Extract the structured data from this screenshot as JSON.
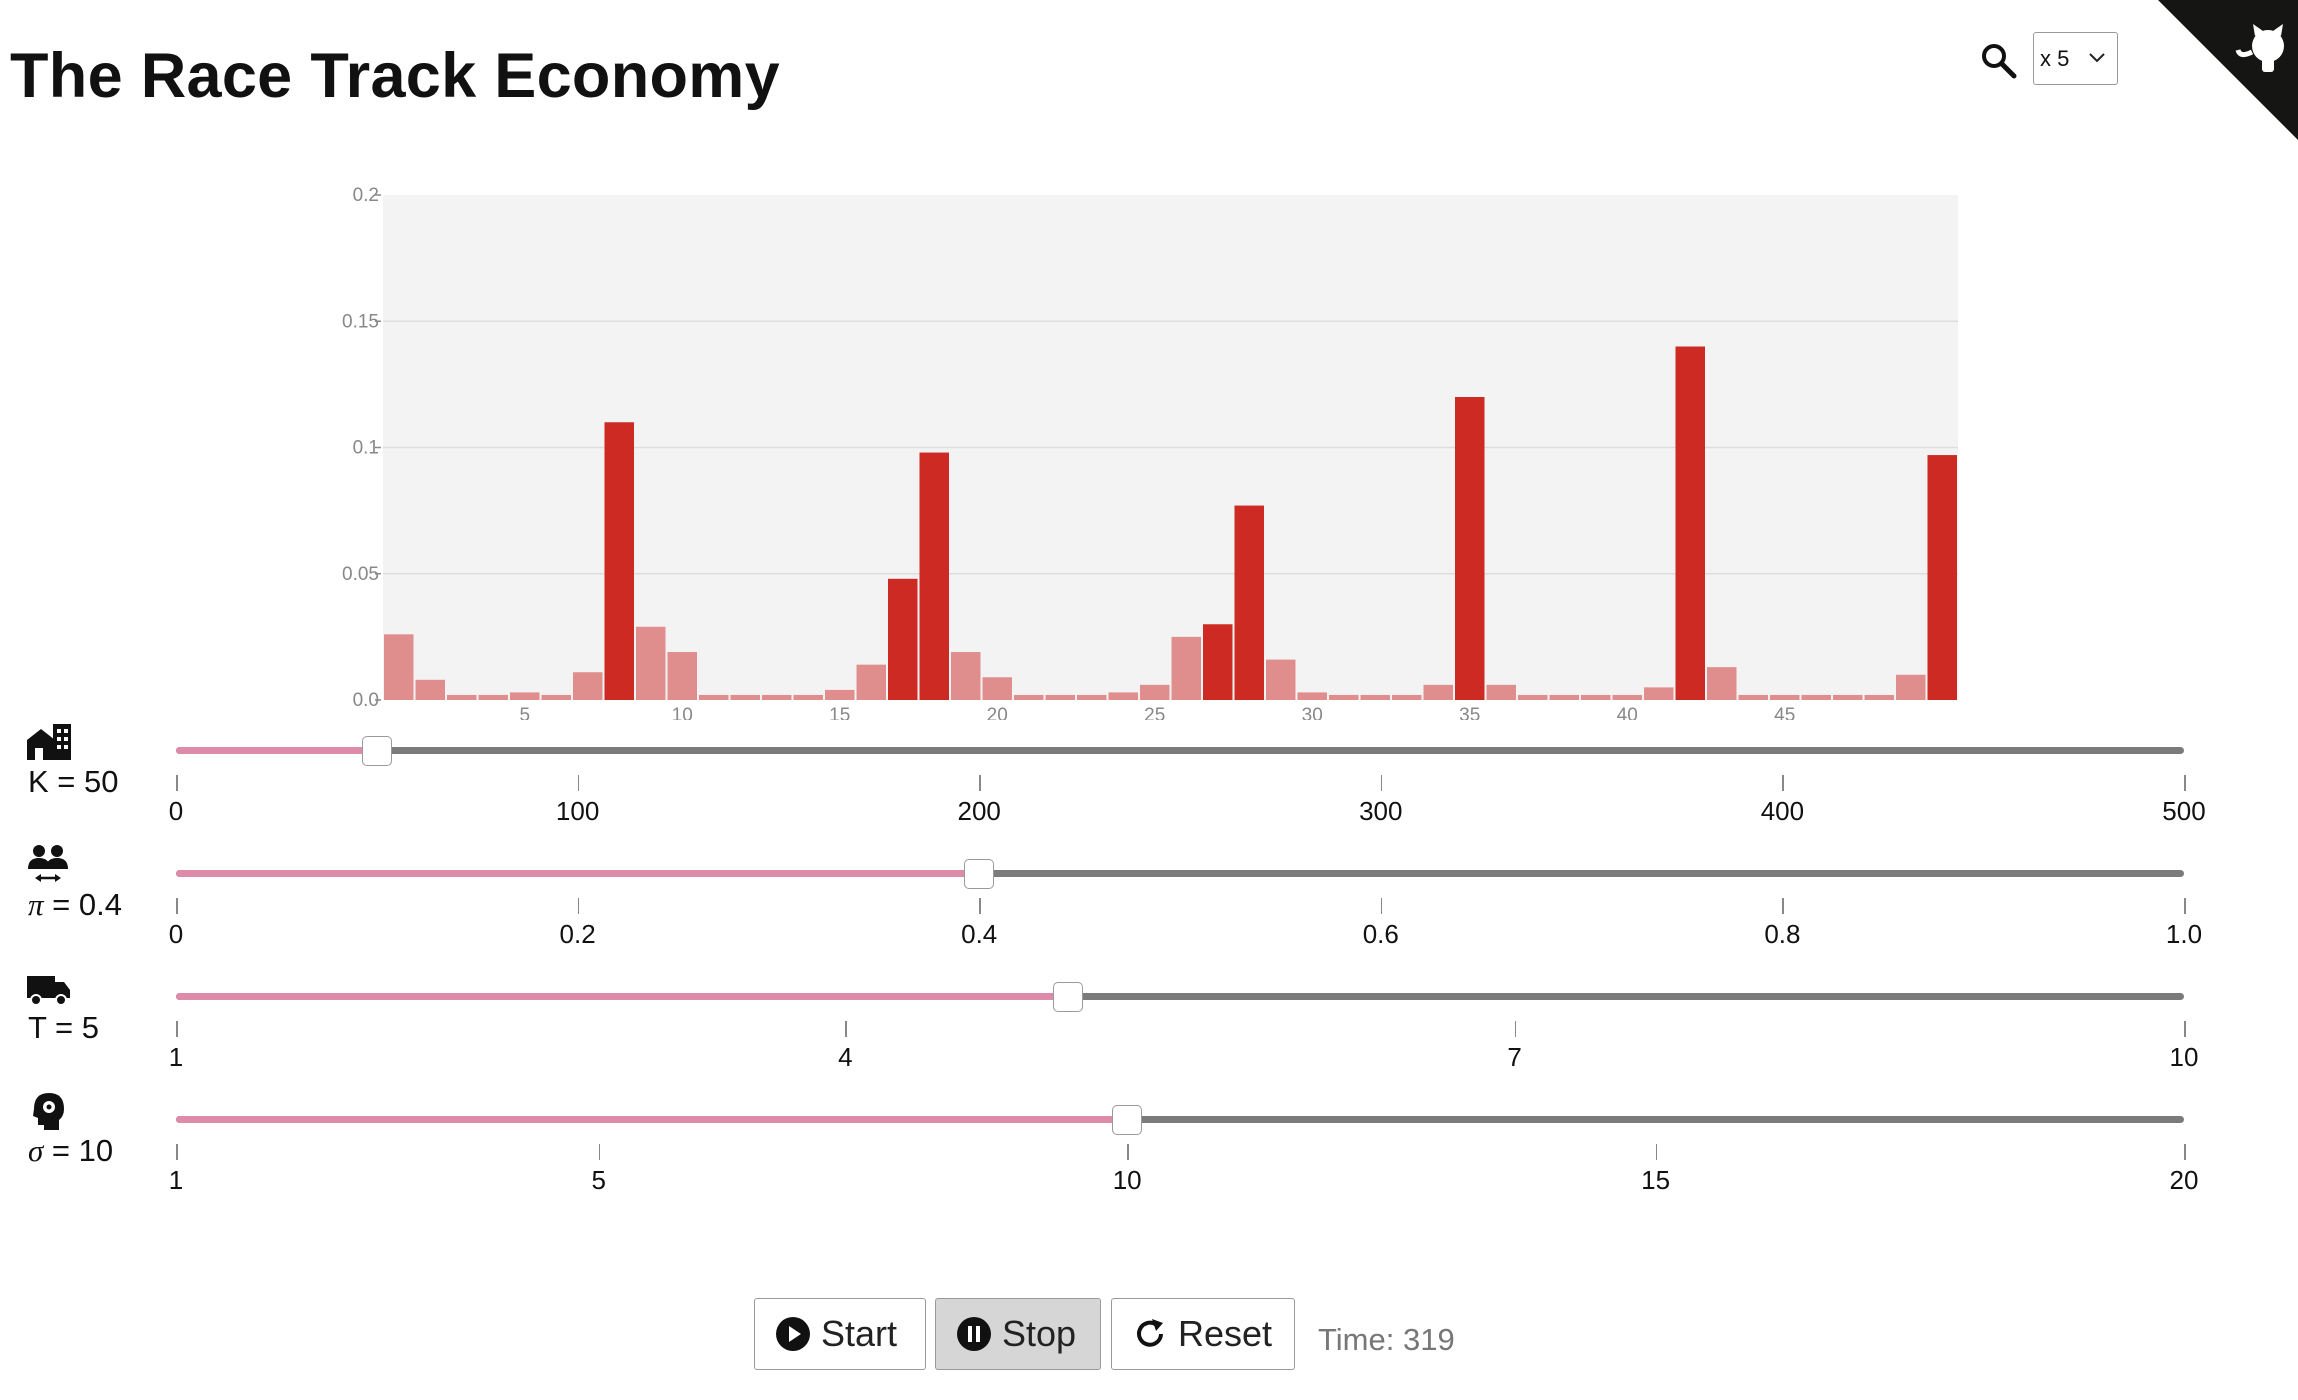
{
  "app": {
    "title": "The Race Track Economy",
    "speed": {
      "selected": "x 5"
    },
    "icons": {
      "search": "search-icon",
      "speed_menu": "chevron-down-icon",
      "corner": "github-octocat-icon"
    }
  },
  "chart_data": {
    "type": "bar",
    "x": [
      1,
      2,
      3,
      4,
      5,
      6,
      7,
      8,
      9,
      10,
      11,
      12,
      13,
      14,
      15,
      16,
      17,
      18,
      19,
      20,
      21,
      22,
      23,
      24,
      25,
      26,
      27,
      28,
      29,
      30,
      31,
      32,
      33,
      34,
      35,
      36,
      37,
      38,
      39,
      40,
      41,
      42,
      43,
      44,
      45,
      46,
      47,
      48,
      49,
      50
    ],
    "values": [
      0.026,
      0.008,
      0.002,
      0.002,
      0.003,
      0.002,
      0.011,
      0.11,
      0.029,
      0.019,
      0.002,
      0.002,
      0.002,
      0.002,
      0.004,
      0.014,
      0.048,
      0.098,
      0.019,
      0.009,
      0.002,
      0.002,
      0.002,
      0.003,
      0.006,
      0.025,
      0.03,
      0.077,
      0.016,
      0.003,
      0.002,
      0.002,
      0.002,
      0.006,
      0.12,
      0.006,
      0.002,
      0.002,
      0.002,
      0.002,
      0.005,
      0.14,
      0.013,
      0.002,
      0.002,
      0.002,
      0.002,
      0.002,
      0.01,
      0.097
    ],
    "highlight": [
      false,
      false,
      false,
      false,
      false,
      false,
      false,
      true,
      false,
      false,
      false,
      false,
      false,
      false,
      false,
      false,
      true,
      true,
      false,
      false,
      false,
      false,
      false,
      false,
      false,
      false,
      true,
      true,
      false,
      false,
      false,
      false,
      false,
      false,
      true,
      false,
      false,
      false,
      false,
      false,
      false,
      true,
      false,
      false,
      false,
      false,
      false,
      false,
      false,
      true
    ],
    "xticks": [
      "5",
      "10",
      "15",
      "20",
      "25",
      "30",
      "35",
      "40",
      "45"
    ],
    "xtick_values": [
      5,
      10,
      15,
      20,
      25,
      30,
      35,
      40,
      45
    ],
    "yticks": [
      "0.0",
      "0.05",
      "0.1",
      "0.15",
      "0.2"
    ],
    "ytick_values": [
      0,
      0.05,
      0.1,
      0.15,
      0.2
    ],
    "ylim": [
      0,
      0.2
    ],
    "grid": true,
    "colors": {
      "highlight": "#cc2a22",
      "normal": "#e08d8d",
      "plot_bg": "#f3f3f3",
      "grid": "#dddddd",
      "axis_text": "#888888"
    }
  },
  "sliders": [
    {
      "id": "k",
      "icon": "houses-icon",
      "symbol": "K",
      "value_text": "50",
      "min": 0,
      "max": 500,
      "value": 50,
      "ticks": [
        0,
        100,
        200,
        300,
        400,
        500
      ],
      "tick_labels": [
        "0",
        "100",
        "200",
        "300",
        "400",
        "500"
      ]
    },
    {
      "id": "pi",
      "icon": "people-exchange-icon",
      "symbol": "π",
      "value_text": "0.4",
      "min": 0,
      "max": 1,
      "value": 0.4,
      "ticks": [
        0,
        0.2,
        0.4,
        0.6,
        0.8,
        1.0
      ],
      "tick_labels": [
        "0",
        "0.2",
        "0.4",
        "0.6",
        "0.8",
        "1.0"
      ]
    },
    {
      "id": "t",
      "icon": "truck-icon",
      "symbol": "T",
      "value_text": "5",
      "min": 1,
      "max": 10,
      "value": 5,
      "ticks": [
        1,
        4,
        7,
        10
      ],
      "tick_labels": [
        "1",
        "4",
        "7",
        "10"
      ]
    },
    {
      "id": "sigma",
      "icon": "head-gear-icon",
      "symbol": "σ",
      "value_text": "10",
      "min": 1,
      "max": 20,
      "value": 10,
      "ticks": [
        1,
        5,
        10,
        15,
        20
      ],
      "tick_labels": [
        "1",
        "5",
        "10",
        "15",
        "20"
      ]
    }
  ],
  "slider_colors": {
    "track": "#7b7b7b",
    "fill": "#dd8ba8"
  },
  "controls": {
    "start_label": "Start",
    "stop_label": "Stop",
    "reset_label": "Reset",
    "time_label": "Time:",
    "time_value": "319",
    "icons": {
      "start": "play-icon",
      "stop": "pause-icon",
      "reset": "reset-icon"
    }
  }
}
